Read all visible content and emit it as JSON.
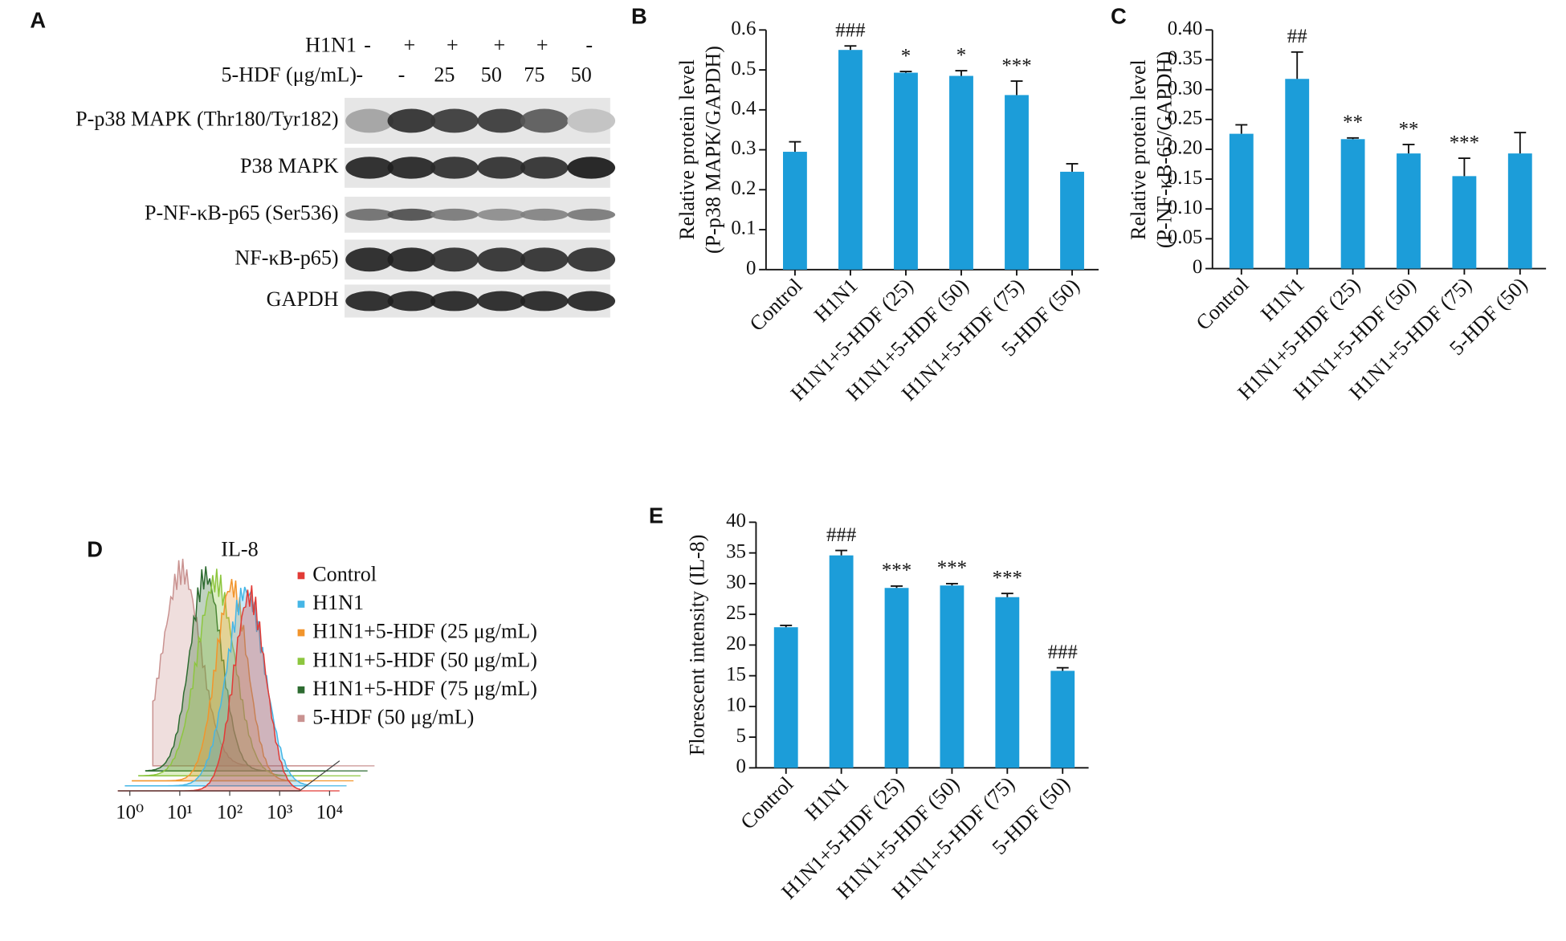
{
  "blot": {
    "panel_label": "A",
    "conditions": [
      {
        "label": "H1N1",
        "lanes": [
          "-",
          "+",
          "+",
          "+",
          "+",
          "-"
        ]
      },
      {
        "label": "5-HDF (μg/mL)",
        "lanes": [
          "-",
          "-",
          "25",
          "50",
          "75",
          "50"
        ]
      }
    ],
    "rows": [
      "P-p38 MAPK (Thr180/Tyr182)",
      "P38 MAPK",
      "P-NF-κB-p65 (Ser536)",
      "NF-κB-p65)",
      "GAPDH"
    ]
  },
  "chart_data": [
    {
      "type": "bar",
      "panel_label": "B",
      "y_label": [
        "Relative protein level",
        "(P-p38 MAPK/GAPDH)"
      ],
      "categories": [
        "Control",
        "H1N1",
        "H1N1+5-HDF (25)",
        "H1N1+5-HDF (50)",
        "H1N1+5-HDF (75)",
        "5-HDF (50)"
      ],
      "values": [
        0.295,
        0.55,
        0.493,
        0.485,
        0.437,
        0.245
      ],
      "errors": [
        0.025,
        0.01,
        0.003,
        0.013,
        0.035,
        0.02
      ],
      "annotations": [
        null,
        "###",
        "*",
        "*",
        "***",
        null
      ],
      "color": "#1c9dd9",
      "ylim": [
        0,
        0.6
      ],
      "yticks": [
        0,
        0.1,
        0.2,
        0.3,
        0.4,
        0.5,
        0.6
      ]
    },
    {
      "type": "bar",
      "panel_label": "C",
      "y_label": [
        "Relative protein level",
        "(P-NF-κB-65/GAPDH)"
      ],
      "categories": [
        "Control",
        "H1N1",
        "H1N1+5-HDF (25)",
        "H1N1+5-HDF (50)",
        "H1N1+5-HDF (75)",
        "5-HDF (50)"
      ],
      "values": [
        0.226,
        0.318,
        0.217,
        0.193,
        0.155,
        0.193
      ],
      "errors": [
        0.015,
        0.045,
        0.002,
        0.015,
        0.03,
        0.035
      ],
      "annotations": [
        null,
        "##",
        "**",
        "**",
        "***",
        null
      ],
      "color": "#1c9dd9",
      "ylim": [
        0,
        0.4
      ],
      "yticks": [
        0,
        0.05,
        {
          "value": 0.1,
          "label": "0.10"
        },
        0.15,
        {
          "value": 0.2,
          "label": "0.20"
        },
        0.25,
        {
          "value": 0.3,
          "label": "0.30"
        },
        0.35,
        {
          "value": 0.4,
          "label": "0.40"
        }
      ]
    },
    {
      "type": "bar",
      "panel_label": "E",
      "y_label": [
        "Florescent intensity (IL-8)"
      ],
      "categories": [
        "Control",
        "H1N1",
        "H1N1+5-HDF (25)",
        "H1N1+5-HDF (50)",
        "H1N1+5-HDF (75)",
        "5-HDF (50)"
      ],
      "values": [
        22.9,
        34.6,
        29.3,
        29.7,
        27.8,
        15.8
      ],
      "errors": [
        0.3,
        0.8,
        0.3,
        0.3,
        0.6,
        0.5
      ],
      "annotations": [
        null,
        "###",
        "***",
        "***",
        "***",
        "###"
      ],
      "color": "#1c9dd9",
      "ylim": [
        0,
        40
      ],
      "yticks": [
        0,
        5,
        10,
        15,
        20,
        25,
        30,
        35,
        40
      ]
    },
    {
      "type": "flow",
      "panel_label": "D",
      "title": "IL-8",
      "log_x": true,
      "series": [
        {
          "name": "Control",
          "color": "#e23b36"
        },
        {
          "name": "H1N1",
          "color": "#45b6e6"
        },
        {
          "name": "H1N1+5-HDF (25 μg/mL)",
          "color": "#f2952c"
        },
        {
          "name": "H1N1+5-HDF (50 μg/mL)",
          "color": "#8dc63f"
        },
        {
          "name": "H1N1+5-HDF (75 μg/mL)",
          "color": "#2d6b30"
        },
        {
          "name": "5-HDF (50 μg/mL)",
          "color": "#c99290"
        }
      ],
      "xlim": [
        1,
        10000
      ],
      "xticks": [
        {
          "value": 1,
          "label": "10⁰"
        },
        {
          "value": 10,
          "label": "10¹"
        },
        {
          "value": 100,
          "label": "10²"
        },
        {
          "value": 1000,
          "label": "10³"
        },
        {
          "value": 10000,
          "label": "10⁴"
        }
      ]
    }
  ]
}
